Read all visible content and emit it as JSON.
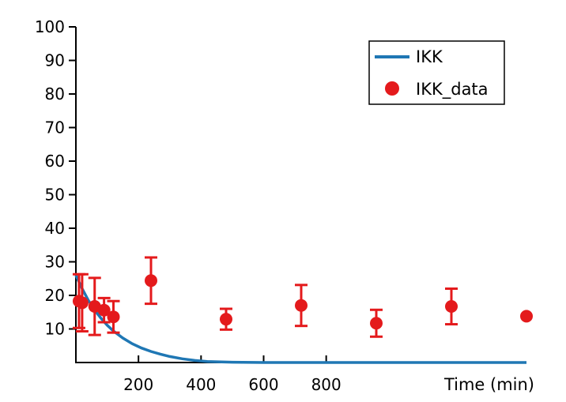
{
  "chart_data": {
    "type": "scatter",
    "title": "",
    "xlabel": "Time (min)",
    "ylabel": "",
    "xlim": [
      0,
      1440
    ],
    "ylim": [
      0,
      100
    ],
    "x_ticks": [
      200,
      400,
      600,
      800
    ],
    "y_ticks": [
      10,
      20,
      30,
      40,
      50,
      60,
      70,
      80,
      90,
      100
    ],
    "grid": false,
    "legend_position": "top-right",
    "series": [
      {
        "name": "IKK",
        "kind": "line",
        "color": "#1f77b4",
        "x": [
          0,
          20,
          40,
          60,
          80,
          100,
          120,
          150,
          180,
          210,
          240,
          270,
          300,
          340,
          380,
          420,
          500,
          600,
          800,
          1000,
          1200,
          1440
        ],
        "y": [
          26,
          22,
          18.5,
          15.6,
          13.2,
          11.1,
          9.4,
          7.3,
          5.6,
          4.3,
          3.3,
          2.5,
          1.8,
          1.1,
          0.6,
          0.3,
          0.1,
          0,
          0,
          0,
          0,
          0
        ]
      },
      {
        "name": "IKK_data",
        "kind": "scatter",
        "color": "#e41a1c",
        "x": [
          10,
          20,
          60,
          90,
          120,
          240,
          480,
          720,
          960,
          1200,
          1440
        ],
        "y": [
          18.3,
          17.8,
          16.7,
          15.6,
          13.6,
          24.4,
          12.9,
          17.0,
          11.7,
          16.7,
          13.8
        ],
        "err": [
          8.0,
          8.5,
          8.5,
          3.6,
          4.7,
          6.9,
          3.1,
          6.1,
          4.0,
          5.3,
          0
        ]
      }
    ]
  }
}
